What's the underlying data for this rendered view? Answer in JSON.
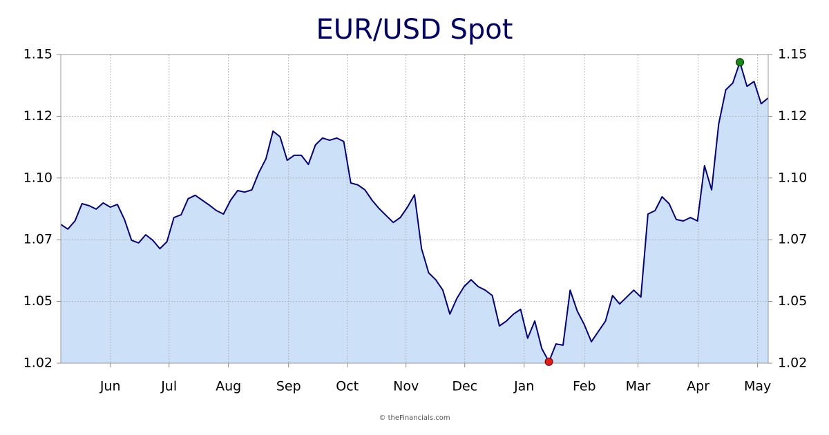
{
  "chart_data": {
    "type": "area",
    "title": "EUR/USD Spot",
    "footer": "© theFinancials.com",
    "line_color": "#000080",
    "fill_color": "#cce0f7",
    "title_color": "#000066",
    "min_marker_color": "#e41b1b",
    "max_marker_color": "#148a14",
    "grid": true,
    "xlim": [
      0,
      100
    ],
    "xticks": [
      {
        "value": 7.0,
        "label": "Jun"
      },
      {
        "value": 15.3,
        "label": "Jul"
      },
      {
        "value": 23.7,
        "label": "Aug"
      },
      {
        "value": 32.2,
        "label": "Sep"
      },
      {
        "value": 40.5,
        "label": "Oct"
      },
      {
        "value": 48.8,
        "label": "Nov"
      },
      {
        "value": 57.1,
        "label": "Dec"
      },
      {
        "value": 65.5,
        "label": "Jan"
      },
      {
        "value": 74.0,
        "label": "Feb"
      },
      {
        "value": 81.6,
        "label": "Mar"
      },
      {
        "value": 90.1,
        "label": "Apr"
      },
      {
        "value": 98.5,
        "label": "May"
      }
    ],
    "ylim": [
      1.025,
      1.15
    ],
    "yticks": [
      {
        "value": 1.025,
        "label": "1.02"
      },
      1.05,
      {
        "value": 1.075,
        "label": "1.07"
      },
      {
        "value": 1.1,
        "label": "1.10"
      },
      {
        "value": 1.125,
        "label": "1.12"
      },
      1.15
    ],
    "values": [
      1.0812,
      1.0793,
      1.0826,
      1.0896,
      1.0888,
      1.0874,
      1.0899,
      1.0882,
      1.0893,
      1.0832,
      1.0748,
      1.0737,
      1.077,
      1.0748,
      1.0714,
      1.0742,
      1.084,
      1.0851,
      1.0916,
      1.093,
      1.091,
      1.089,
      1.0868,
      1.0854,
      1.091,
      1.0949,
      1.0943,
      1.0952,
      1.1022,
      1.1078,
      1.119,
      1.1167,
      1.1072,
      1.1092,
      1.1092,
      1.1055,
      1.1134,
      1.1162,
      1.1153,
      1.1162,
      1.1148,
      1.098,
      1.0972,
      1.0952,
      1.091,
      1.0876,
      1.0848,
      1.082,
      1.084,
      1.0882,
      1.0932,
      1.0714,
      1.0616,
      1.0588,
      1.0546,
      1.0449,
      1.0513,
      1.056,
      1.0588,
      1.056,
      1.0546,
      1.0524,
      1.0401,
      1.0421,
      1.0449,
      1.0468,
      1.0351,
      1.0421,
      1.0309,
      1.0256,
      1.0328,
      1.0323,
      1.0546,
      1.0462,
      1.0406,
      1.0337,
      1.0379,
      1.0421,
      1.0524,
      1.049,
      1.0518,
      1.0546,
      1.0518,
      1.0854,
      1.0868,
      1.0924,
      1.0896,
      1.0832,
      1.0826,
      1.084,
      1.0826,
      1.105,
      1.0952,
      1.1218,
      1.1357,
      1.1385,
      1.1469,
      1.1371,
      1.1391,
      1.1301,
      1.1324
    ]
  }
}
